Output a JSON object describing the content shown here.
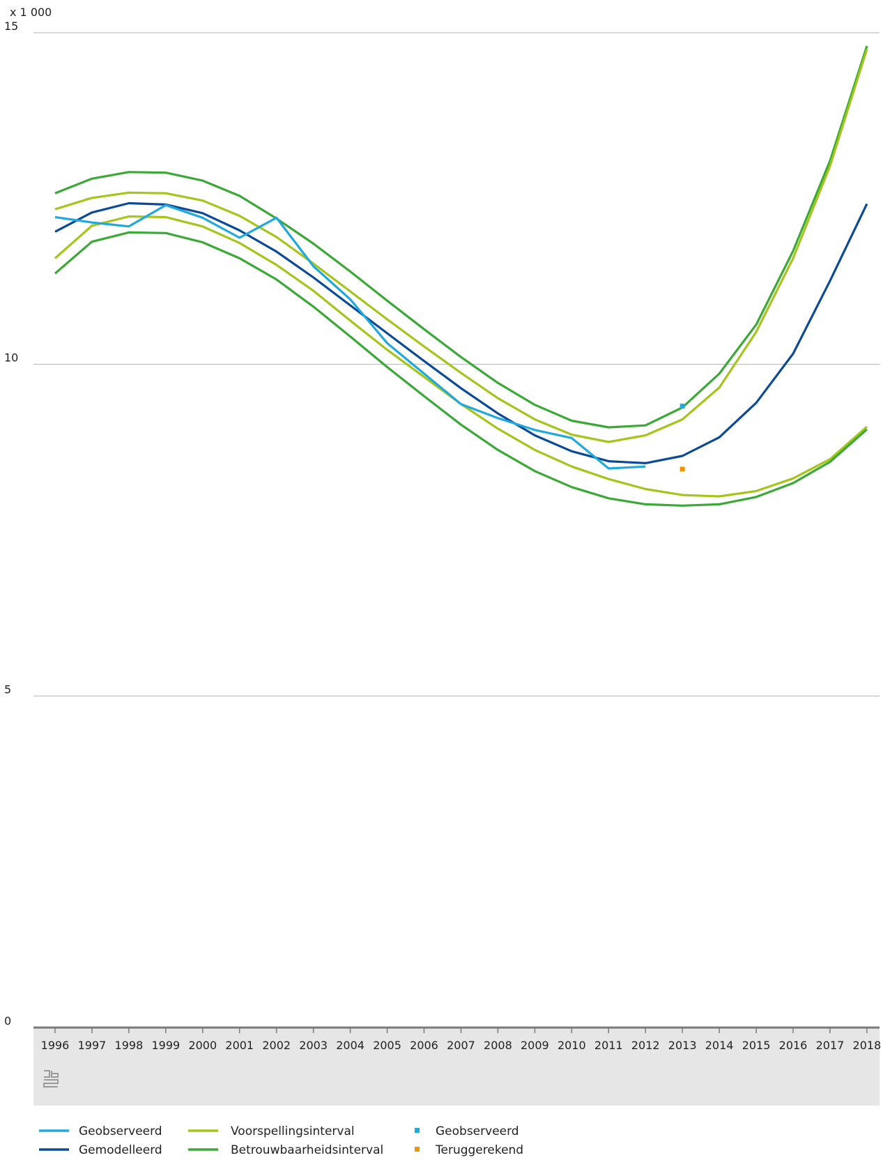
{
  "chart_data": {
    "type": "line",
    "unit_label": "x 1 000",
    "y_ticks": [
      0,
      5,
      10,
      15
    ],
    "ylim": [
      0,
      15
    ],
    "x": [
      1996,
      1997,
      1998,
      1999,
      2000,
      2001,
      2002,
      2003,
      2004,
      2005,
      2006,
      2007,
      2008,
      2009,
      2010,
      2011,
      2012,
      2013,
      2014,
      2015,
      2016,
      2017,
      2018
    ],
    "x_tick_labels": [
      "1996",
      "1997",
      "1998",
      "1999",
      "2000",
      "2001",
      "2002",
      "2003",
      "2004",
      "2005",
      "2006",
      "2007",
      "2008",
      "2009",
      "2010",
      "2011",
      "2012",
      "2013",
      "2014",
      "2015",
      "2016",
      "2017",
      "2018"
    ],
    "grid": "horizontal",
    "legend_position": "bottom",
    "series": [
      {
        "name": "Betrouwbaarheidsinterval",
        "role": "ci_upper",
        "color": "#3aa935",
        "values": [
          12.58,
          12.8,
          12.9,
          12.89,
          12.77,
          12.54,
          12.2,
          11.82,
          11.4,
          10.96,
          10.53,
          10.11,
          9.72,
          9.39,
          9.15,
          9.05,
          9.08,
          9.35,
          9.86,
          10.6,
          11.71,
          13.07,
          14.8
        ]
      },
      {
        "name": "Voorspellingsinterval",
        "role": "pi_upper",
        "color": "#a5c51b",
        "values": [
          12.34,
          12.51,
          12.59,
          12.58,
          12.47,
          12.24,
          11.92,
          11.52,
          11.1,
          10.68,
          10.27,
          9.87,
          9.49,
          9.17,
          8.94,
          8.83,
          8.93,
          9.17,
          9.65,
          10.49,
          11.6,
          12.99,
          14.75
        ]
      },
      {
        "name": "Gemodelleerd",
        "role": "model",
        "color": "#0a4a97",
        "values": [
          12.0,
          12.29,
          12.43,
          12.41,
          12.28,
          12.02,
          11.7,
          11.31,
          10.89,
          10.47,
          10.05,
          9.64,
          9.26,
          8.93,
          8.69,
          8.54,
          8.51,
          8.62,
          8.9,
          9.42,
          10.16,
          11.26,
          12.42
        ]
      },
      {
        "name": "Voorspellingsinterval",
        "role": "pi_lower",
        "color": "#a5c51b",
        "values": [
          11.6,
          12.09,
          12.23,
          12.22,
          12.08,
          11.83,
          11.5,
          11.11,
          10.66,
          10.22,
          9.81,
          9.4,
          9.03,
          8.71,
          8.46,
          8.27,
          8.12,
          8.03,
          8.01,
          8.09,
          8.28,
          8.57,
          9.06
        ]
      },
      {
        "name": "Betrouwbaarheidsinterval",
        "role": "ci_lower",
        "color": "#3aa935",
        "values": [
          11.37,
          11.85,
          11.99,
          11.98,
          11.84,
          11.6,
          11.28,
          10.87,
          10.42,
          9.96,
          9.52,
          9.09,
          8.71,
          8.39,
          8.15,
          7.98,
          7.89,
          7.87,
          7.89,
          8.0,
          8.21,
          8.53,
          9.02
        ]
      },
      {
        "name": "Geobserveerd",
        "role": "observed",
        "color": "#20a9dc",
        "values": [
          12.22,
          12.14,
          12.08,
          12.4,
          12.21,
          11.91,
          12.21,
          11.48,
          10.98,
          10.32,
          9.86,
          9.4,
          9.19,
          9.01,
          8.89,
          8.43,
          8.46,
          null,
          null,
          null,
          null,
          null,
          null
        ]
      }
    ],
    "points": [
      {
        "name": "Geobserveerd",
        "x": 2013,
        "y": 9.37,
        "color": "#20a9dc"
      },
      {
        "name": "Teruggerekend",
        "x": 2013,
        "y": 8.42,
        "color": "#f39200"
      }
    ]
  },
  "legend": [
    {
      "label": "Geobserveerd",
      "kind": "line",
      "color": "#20a9dc"
    },
    {
      "label": "Gemodelleerd",
      "kind": "line",
      "color": "#0a4a97"
    },
    {
      "label": "Voorspellingsinterval",
      "kind": "line",
      "color": "#a5c51b"
    },
    {
      "label": "Betrouwbaarheidsinterval",
      "kind": "line",
      "color": "#3aa935"
    },
    {
      "label": "Geobserveerd",
      "kind": "square",
      "color": "#20a9dc"
    },
    {
      "label": "Teruggerekend",
      "kind": "square",
      "color": "#f39200"
    }
  ],
  "logo_icon": "cbs-logo-icon"
}
